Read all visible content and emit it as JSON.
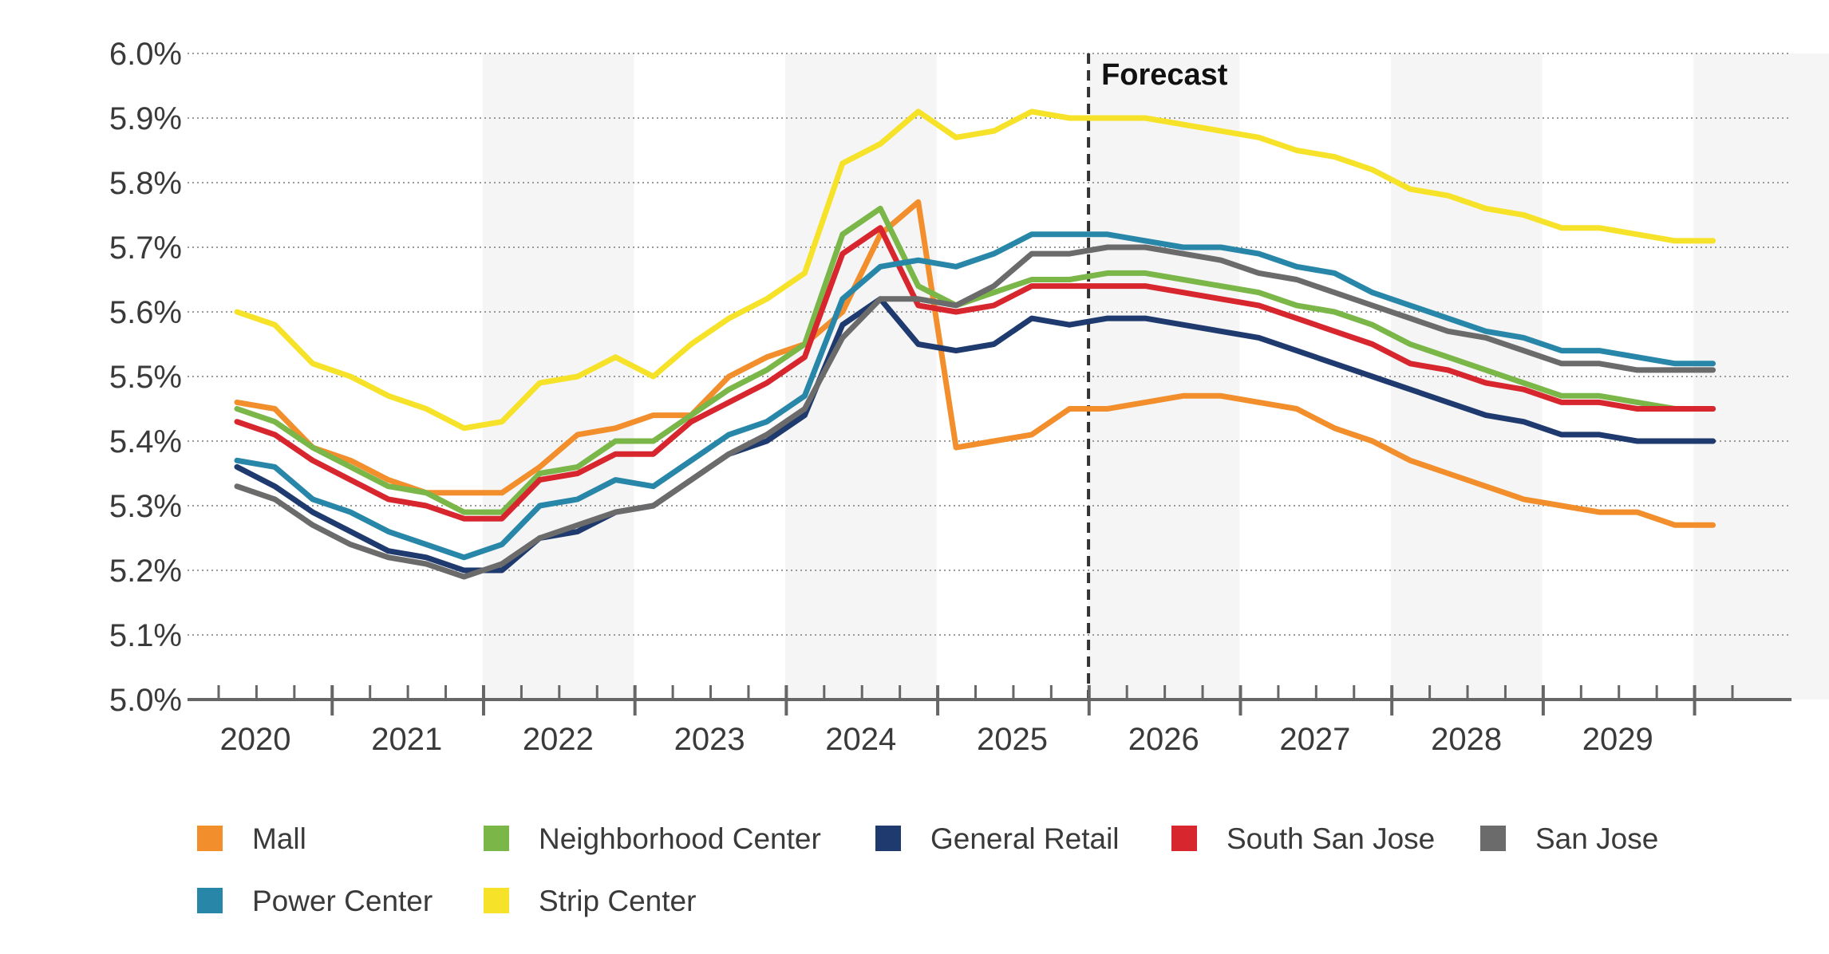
{
  "chart_data": {
    "type": "line",
    "title": "",
    "xlabel": "",
    "ylabel": "",
    "ylim": [
      5.0,
      6.0
    ],
    "y_tick_format": "percent_1dp",
    "y_ticks": [
      "5.0%",
      "5.1%",
      "5.2%",
      "5.3%",
      "5.4%",
      "5.5%",
      "5.6%",
      "5.7%",
      "5.8%",
      "5.9%",
      "6.0%"
    ],
    "x_tick_labels": [
      "2020",
      "2021",
      "2022",
      "2023",
      "2024",
      "2025",
      "2026",
      "2027",
      "2028",
      "2029"
    ],
    "x": [
      "2020 Q1",
      "2020 Q2",
      "2020 Q3",
      "2020 Q4",
      "2021 Q1",
      "2021 Q2",
      "2021 Q3",
      "2021 Q4",
      "2022 Q1",
      "2022 Q2",
      "2022 Q3",
      "2022 Q4",
      "2023 Q1",
      "2023 Q2",
      "2023 Q3",
      "2023 Q4",
      "2024 Q1",
      "2024 Q2",
      "2024 Q3",
      "2024 Q4",
      "2025 Q1",
      "2025 Q2",
      "2025 Q3",
      "2025 Q4",
      "2026 Q1",
      "2026 Q2",
      "2026 Q3",
      "2026 Q4",
      "2027 Q1",
      "2027 Q2",
      "2027 Q3",
      "2027 Q4",
      "2028 Q1",
      "2028 Q2",
      "2028 Q3",
      "2028 Q4",
      "2029 Q1",
      "2029 Q2",
      "2029 Q3",
      "2029 Q4"
    ],
    "grid": "horizontal-dotted",
    "shaded_years": [
      "2021",
      "2023",
      "2025",
      "2027",
      "2029"
    ],
    "forecast_annotation": {
      "label": "Forecast",
      "starts_after": "2025 Q3"
    },
    "legend_position": "bottom",
    "series": [
      {
        "name": "Mall",
        "color": "#F28E2B",
        "values": [
          5.46,
          5.45,
          5.39,
          5.37,
          5.34,
          5.32,
          5.32,
          5.32,
          5.36,
          5.41,
          5.42,
          5.44,
          5.44,
          5.5,
          5.53,
          5.55,
          5.6,
          5.72,
          5.77,
          5.39,
          5.4,
          5.41,
          5.45,
          5.45,
          5.46,
          5.47,
          5.47,
          5.46,
          5.45,
          5.42,
          5.4,
          5.37,
          5.35,
          5.33,
          5.31,
          5.3,
          5.29,
          5.29,
          5.27,
          5.27
        ]
      },
      {
        "name": "Neighborhood Center",
        "color": "#7AB648",
        "values": [
          5.45,
          5.43,
          5.39,
          5.36,
          5.33,
          5.32,
          5.29,
          5.29,
          5.35,
          5.36,
          5.4,
          5.4,
          5.44,
          5.48,
          5.51,
          5.55,
          5.72,
          5.76,
          5.64,
          5.61,
          5.63,
          5.65,
          5.65,
          5.66,
          5.66,
          5.65,
          5.64,
          5.63,
          5.61,
          5.6,
          5.58,
          5.55,
          5.53,
          5.51,
          5.49,
          5.47,
          5.47,
          5.46,
          5.45,
          5.45
        ]
      },
      {
        "name": "General Retail",
        "color": "#1F3A6E",
        "values": [
          5.36,
          5.33,
          5.29,
          5.26,
          5.23,
          5.22,
          5.2,
          5.2,
          5.25,
          5.26,
          5.29,
          5.3,
          5.34,
          5.38,
          5.4,
          5.44,
          5.58,
          5.62,
          5.55,
          5.54,
          5.55,
          5.59,
          5.58,
          5.59,
          5.59,
          5.58,
          5.57,
          5.56,
          5.54,
          5.52,
          5.5,
          5.48,
          5.46,
          5.44,
          5.43,
          5.41,
          5.41,
          5.4,
          5.4,
          5.4
        ]
      },
      {
        "name": "South San Jose",
        "color": "#D7262D",
        "values": [
          5.43,
          5.41,
          5.37,
          5.34,
          5.31,
          5.3,
          5.28,
          5.28,
          5.34,
          5.35,
          5.38,
          5.38,
          5.43,
          5.46,
          5.49,
          5.53,
          5.69,
          5.73,
          5.61,
          5.6,
          5.61,
          5.64,
          5.64,
          5.64,
          5.64,
          5.63,
          5.62,
          5.61,
          5.59,
          5.57,
          5.55,
          5.52,
          5.51,
          5.49,
          5.48,
          5.46,
          5.46,
          5.45,
          5.45,
          5.45
        ]
      },
      {
        "name": "San Jose",
        "color": "#6B6B6B",
        "values": [
          5.33,
          5.31,
          5.27,
          5.24,
          5.22,
          5.21,
          5.19,
          5.21,
          5.25,
          5.27,
          5.29,
          5.3,
          5.34,
          5.38,
          5.41,
          5.45,
          5.56,
          5.62,
          5.62,
          5.61,
          5.64,
          5.69,
          5.69,
          5.7,
          5.7,
          5.69,
          5.68,
          5.66,
          5.65,
          5.63,
          5.61,
          5.59,
          5.57,
          5.56,
          5.54,
          5.52,
          5.52,
          5.51,
          5.51,
          5.51
        ]
      },
      {
        "name": "Power Center",
        "color": "#2887A8",
        "values": [
          5.37,
          5.36,
          5.31,
          5.29,
          5.26,
          5.24,
          5.22,
          5.24,
          5.3,
          5.31,
          5.34,
          5.33,
          5.37,
          5.41,
          5.43,
          5.47,
          5.62,
          5.67,
          5.68,
          5.67,
          5.69,
          5.72,
          5.72,
          5.72,
          5.71,
          5.7,
          5.7,
          5.69,
          5.67,
          5.66,
          5.63,
          5.61,
          5.59,
          5.57,
          5.56,
          5.54,
          5.54,
          5.53,
          5.52,
          5.52
        ]
      },
      {
        "name": "Strip Center",
        "color": "#F6E228",
        "values": [
          5.6,
          5.58,
          5.52,
          5.5,
          5.47,
          5.45,
          5.42,
          5.43,
          5.49,
          5.5,
          5.53,
          5.5,
          5.55,
          5.59,
          5.62,
          5.66,
          5.83,
          5.86,
          5.91,
          5.87,
          5.88,
          5.91,
          5.9,
          5.9,
          5.9,
          5.89,
          5.88,
          5.87,
          5.85,
          5.84,
          5.82,
          5.79,
          5.78,
          5.76,
          5.75,
          5.73,
          5.73,
          5.72,
          5.71,
          5.71
        ]
      }
    ]
  }
}
